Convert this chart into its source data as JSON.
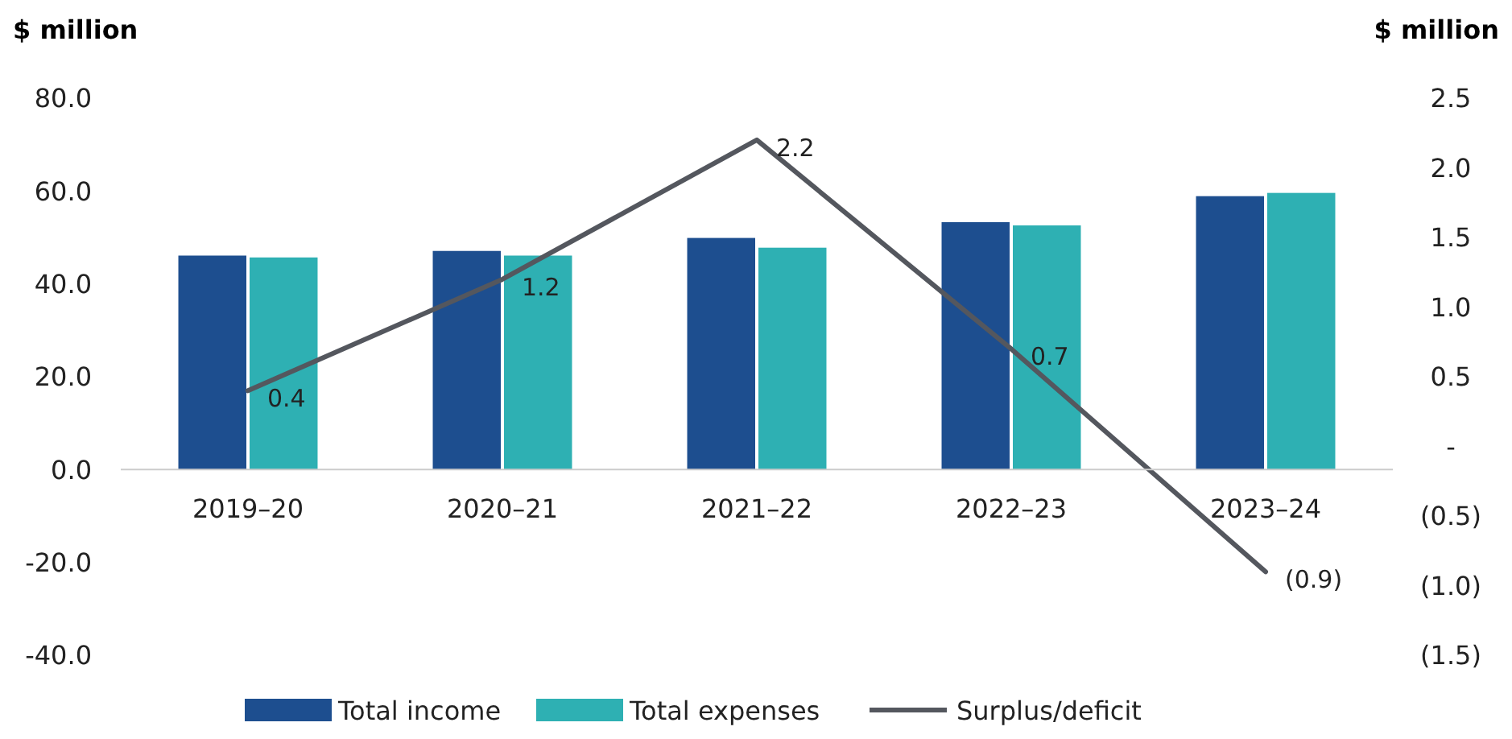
{
  "chart_data": {
    "type": "bar",
    "ylabel": "$ million",
    "y2label": "$ million",
    "categories": [
      "2019–20",
      "2020–21",
      "2021–22",
      "2022–23",
      "2023–24"
    ],
    "series": [
      {
        "name": "Total income",
        "color": "#1d4e8f",
        "values": [
          46.1,
          47.1,
          49.9,
          53.3,
          58.9
        ]
      },
      {
        "name": "Total expenses",
        "color": "#2eb0b3",
        "values": [
          45.7,
          46.1,
          47.8,
          52.6,
          59.6
        ]
      },
      {
        "name": "Surplus/deficit",
        "type": "line",
        "axis": "y2",
        "color": "#54575e",
        "values": [
          0.4,
          1.2,
          2.2,
          0.7,
          -0.9
        ],
        "value_labels": [
          "0.4",
          "1.2",
          "2.2",
          "0.7",
          "(0.9)"
        ]
      }
    ],
    "ylim": [
      -40,
      80
    ],
    "yticks": [
      {
        "value": -40,
        "label": "-40.0"
      },
      {
        "value": -20,
        "label": "-20.0"
      },
      {
        "value": 0,
        "label": "0.0"
      },
      {
        "value": 20,
        "label": "20.0"
      },
      {
        "value": 40,
        "label": "40.0"
      },
      {
        "value": 60,
        "label": "60.0"
      },
      {
        "value": 80,
        "label": "80.0"
      }
    ],
    "y2lim": [
      -1.5,
      2.5
    ],
    "y2ticks": [
      {
        "value": -1.5,
        "label": "(1.5)"
      },
      {
        "value": -1,
        "label": "(1.0)"
      },
      {
        "value": -0.5,
        "label": "(0.5)"
      },
      {
        "value": 0,
        "label": "-"
      },
      {
        "value": 0.5,
        "label": "0.5"
      },
      {
        "value": 1,
        "label": "1.0"
      },
      {
        "value": 1.5,
        "label": "1.5"
      },
      {
        "value": 2,
        "label": "2.0"
      },
      {
        "value": 2.5,
        "label": "2.5"
      }
    ],
    "grid": false,
    "legend": "bottom",
    "marker": "none",
    "line_style": "solid"
  }
}
